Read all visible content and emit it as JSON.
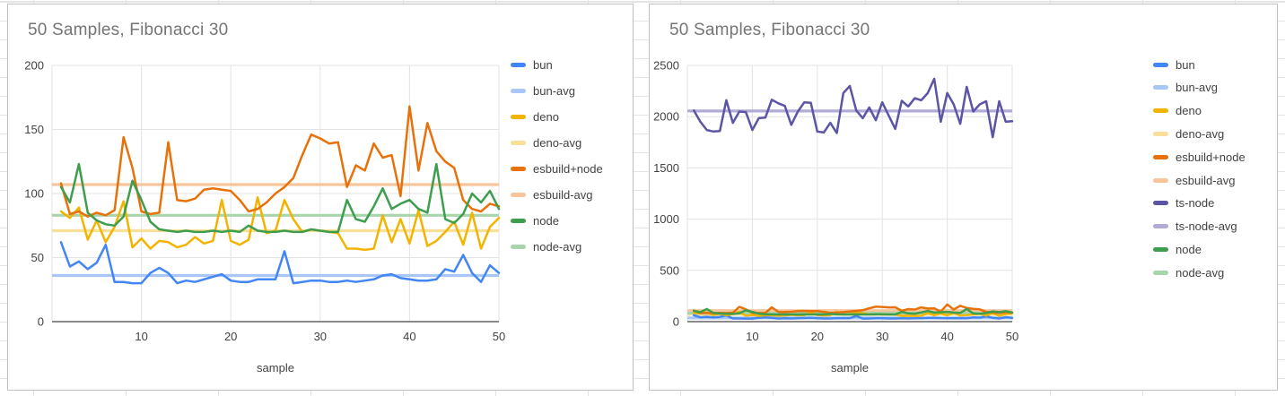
{
  "chart_data": [
    {
      "type": "line",
      "title": "50 Samples, Fibonacci 30",
      "xlabel": "sample",
      "xlim": [
        0,
        50
      ],
      "xticks": [
        10,
        20,
        30,
        40,
        50
      ],
      "ylim": [
        0,
        200
      ],
      "yticks": [
        0,
        50,
        100,
        150,
        200
      ],
      "grid": true,
      "legend_position": "right",
      "series": [
        {
          "name": "bun",
          "color": "#4285F4",
          "values": [
            62,
            43,
            47,
            41,
            46,
            60,
            31,
            31,
            30,
            30,
            38,
            42,
            38,
            30,
            32,
            31,
            33,
            35,
            37,
            32,
            31,
            31,
            33,
            33,
            33,
            55,
            30,
            31,
            32,
            32,
            31,
            31,
            32,
            31,
            32,
            33,
            36,
            37,
            34,
            33,
            32,
            32,
            33,
            41,
            39,
            52,
            38,
            31,
            44,
            38
          ]
        },
        {
          "name": "bun-avg",
          "color": "#A9C7F6",
          "avg": 36
        },
        {
          "name": "deno",
          "color": "#F2B400",
          "values": [
            86,
            81,
            89,
            64,
            79,
            62,
            74,
            94,
            58,
            65,
            57,
            63,
            62,
            58,
            60,
            66,
            61,
            63,
            95,
            63,
            60,
            64,
            97,
            69,
            71,
            95,
            80,
            70,
            72,
            71,
            70,
            69,
            57,
            57,
            56,
            57,
            83,
            62,
            80,
            61,
            87,
            59,
            63,
            70,
            78,
            60,
            85,
            57,
            74,
            81
          ]
        },
        {
          "name": "deno-avg",
          "color": "#FADF9A",
          "avg": 71
        },
        {
          "name": "esbuild+node",
          "color": "#E8710A",
          "values": [
            108,
            84,
            86,
            82,
            85,
            83,
            87,
            144,
            120,
            86,
            84,
            85,
            140,
            95,
            94,
            96,
            103,
            104,
            103,
            102,
            95,
            86,
            88,
            93,
            100,
            105,
            112,
            130,
            146,
            143,
            139,
            140,
            105,
            122,
            118,
            139,
            128,
            130,
            98,
            168,
            118,
            155,
            133,
            125,
            120,
            95,
            88,
            86,
            92,
            90
          ]
        },
        {
          "name": "esbuild-avg",
          "color": "#F6C59B",
          "avg": 107
        },
        {
          "name": "node",
          "color": "#3E9E4E",
          "values": [
            105,
            93,
            123,
            85,
            79,
            76,
            75,
            82,
            110,
            95,
            78,
            72,
            71,
            70,
            71,
            70,
            70,
            71,
            70,
            71,
            70,
            75,
            71,
            70,
            70,
            71,
            70,
            70,
            72,
            71,
            70,
            70,
            95,
            80,
            78,
            90,
            104,
            88,
            92,
            95,
            88,
            85,
            123,
            80,
            77,
            84,
            100,
            93,
            102,
            88
          ]
        },
        {
          "name": "node-avg",
          "color": "#A8D5AB",
          "avg": 83
        }
      ]
    },
    {
      "type": "line",
      "title": "50 Samples, Fibonacci 30",
      "xlabel": "sample",
      "xlim": [
        0,
        50
      ],
      "xticks": [
        10,
        20,
        30,
        40,
        50
      ],
      "ylim": [
        0,
        2500
      ],
      "yticks": [
        0,
        500,
        1000,
        1500,
        2000,
        2500
      ],
      "grid": true,
      "legend_position": "right",
      "series": [
        {
          "name": "bun",
          "color": "#4285F4",
          "values": [
            62,
            43,
            47,
            41,
            46,
            60,
            31,
            31,
            30,
            30,
            38,
            42,
            38,
            30,
            32,
            31,
            33,
            35,
            37,
            32,
            31,
            31,
            33,
            33,
            33,
            55,
            30,
            31,
            32,
            32,
            31,
            31,
            32,
            31,
            32,
            33,
            36,
            37,
            34,
            33,
            32,
            32,
            33,
            41,
            39,
            52,
            38,
            31,
            44,
            38
          ]
        },
        {
          "name": "bun-avg",
          "color": "#A9C7F6",
          "avg": 36
        },
        {
          "name": "deno",
          "color": "#F2B400",
          "values": [
            86,
            81,
            89,
            64,
            79,
            62,
            74,
            94,
            58,
            65,
            57,
            63,
            62,
            58,
            60,
            66,
            61,
            63,
            95,
            63,
            60,
            64,
            97,
            69,
            71,
            95,
            80,
            70,
            72,
            71,
            70,
            69,
            57,
            57,
            56,
            57,
            83,
            62,
            80,
            61,
            87,
            59,
            63,
            70,
            78,
            60,
            85,
            57,
            74,
            81
          ]
        },
        {
          "name": "deno-avg",
          "color": "#FADF9A",
          "avg": 71
        },
        {
          "name": "esbuild+node",
          "color": "#E8710A",
          "values": [
            108,
            84,
            86,
            82,
            85,
            83,
            87,
            144,
            120,
            86,
            84,
            85,
            140,
            95,
            94,
            96,
            103,
            104,
            103,
            102,
            95,
            86,
            88,
            93,
            100,
            105,
            112,
            130,
            146,
            143,
            139,
            140,
            105,
            122,
            118,
            139,
            128,
            130,
            98,
            168,
            118,
            155,
            133,
            125,
            120,
            95,
            88,
            86,
            92,
            90
          ]
        },
        {
          "name": "esbuild-avg",
          "color": "#F6C59B",
          "avg": 107
        },
        {
          "name": "ts-node",
          "color": "#5C55A5",
          "values": [
            2060,
            1950,
            1870,
            1855,
            1860,
            2160,
            1940,
            2050,
            2045,
            1870,
            1985,
            1990,
            2165,
            2130,
            2105,
            1920,
            2050,
            2140,
            2135,
            1855,
            1845,
            1940,
            1840,
            2230,
            2300,
            2060,
            1985,
            2090,
            1965,
            2140,
            2010,
            1880,
            2155,
            2100,
            2180,
            2160,
            2230,
            2370,
            1950,
            2230,
            2120,
            1930,
            2290,
            2050,
            2120,
            2150,
            1800,
            2150,
            1950,
            1955
          ]
        },
        {
          "name": "ts-node-avg",
          "color": "#B1ABD8",
          "avg": 2055
        },
        {
          "name": "node",
          "color": "#3E9E4E",
          "values": [
            105,
            93,
            123,
            85,
            79,
            76,
            75,
            82,
            110,
            95,
            78,
            72,
            71,
            70,
            71,
            70,
            70,
            71,
            70,
            71,
            70,
            75,
            71,
            70,
            70,
            71,
            70,
            70,
            72,
            71,
            70,
            70,
            95,
            80,
            78,
            90,
            104,
            88,
            92,
            95,
            88,
            85,
            123,
            80,
            77,
            84,
            100,
            93,
            102,
            88
          ]
        },
        {
          "name": "node-avg",
          "color": "#A8D5AB",
          "avg": 83
        }
      ]
    }
  ]
}
